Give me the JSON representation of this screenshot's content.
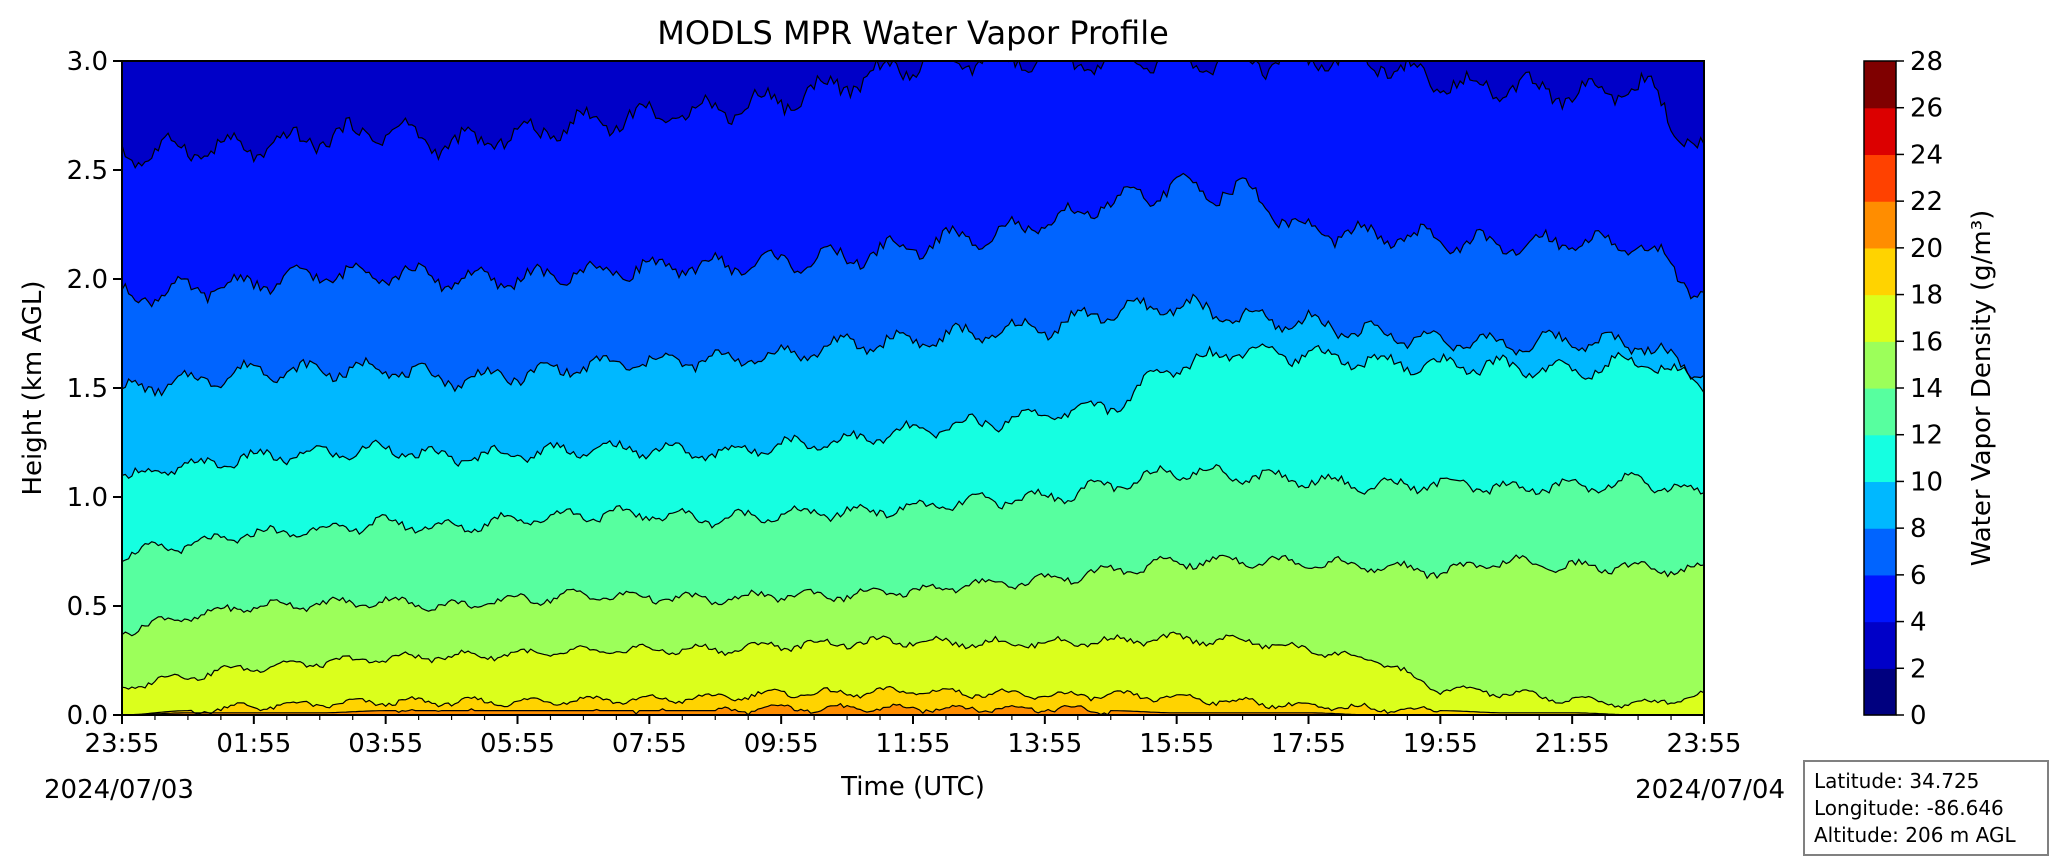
{
  "chart_data": {
    "type": "contour",
    "title": "MODLS MPR Water Vapor Profile",
    "xlabel": "Time (UTC)",
    "ylabel": "Height (km AGL)",
    "x_ticks": [
      "23:55",
      "01:55",
      "03:55",
      "05:55",
      "07:55",
      "09:55",
      "11:55",
      "13:55",
      "15:55",
      "17:55",
      "19:55",
      "21:55",
      "23:55"
    ],
    "x_start_date": "2024/07/03",
    "x_end_date": "2024/07/04",
    "y_ticks": [
      "0.0",
      "0.5",
      "1.0",
      "1.5",
      "2.0",
      "2.5",
      "3.0"
    ],
    "ylim": [
      0,
      3.0
    ],
    "colorbar": {
      "label": "Water Vapor Density (g/m³)",
      "levels": [
        0,
        2,
        4,
        6,
        8,
        10,
        12,
        14,
        16,
        18,
        20,
        22,
        24,
        26,
        28
      ],
      "colors": [
        "#00007f",
        "#0000c8",
        "#0014ff",
        "#0064ff",
        "#00b8ff",
        "#15ffe1",
        "#57ff9f",
        "#9cff5a",
        "#dbff1c",
        "#ffd300",
        "#ff8d00",
        "#ff4100",
        "#dc0000",
        "#7f0000"
      ]
    },
    "contours": [
      {
        "level": 20,
        "height_km": [
          0.0,
          0.01,
          0.01,
          0.01,
          0.02,
          0.02,
          0.02,
          0.02,
          0.02,
          0.02,
          0.03,
          0.03,
          0.03,
          0.03,
          0.03,
          0.02,
          0.01,
          0.01,
          0.01,
          0.0,
          0.0,
          0.0,
          0.0,
          0.0,
          0.0
        ]
      },
      {
        "level": 18,
        "height_km": [
          0.0,
          0.02,
          0.04,
          0.05,
          0.06,
          0.06,
          0.06,
          0.07,
          0.07,
          0.08,
          0.1,
          0.1,
          0.11,
          0.1,
          0.09,
          0.09,
          0.08,
          0.06,
          0.04,
          0.03,
          0.02,
          0.01,
          0.01,
          0.0,
          0.0
        ]
      },
      {
        "level": 16,
        "height_km": [
          0.13,
          0.18,
          0.22,
          0.24,
          0.26,
          0.27,
          0.28,
          0.29,
          0.3,
          0.3,
          0.32,
          0.33,
          0.34,
          0.33,
          0.33,
          0.34,
          0.35,
          0.34,
          0.3,
          0.25,
          0.12,
          0.1,
          0.07,
          0.05,
          0.09
        ]
      },
      {
        "level": 14,
        "height_km": [
          0.39,
          0.45,
          0.5,
          0.51,
          0.52,
          0.5,
          0.53,
          0.55,
          0.54,
          0.53,
          0.55,
          0.55,
          0.57,
          0.6,
          0.62,
          0.66,
          0.7,
          0.71,
          0.7,
          0.68,
          0.66,
          0.7,
          0.68,
          0.68,
          0.66
        ]
      },
      {
        "level": 12,
        "height_km": [
          0.74,
          0.78,
          0.83,
          0.85,
          0.88,
          0.86,
          0.9,
          0.92,
          0.92,
          0.9,
          0.92,
          0.93,
          0.95,
          0.98,
          1.0,
          1.05,
          1.12,
          1.1,
          1.08,
          1.05,
          1.06,
          1.04,
          1.05,
          1.07,
          1.02
        ]
      },
      {
        "level": 10,
        "height_km": [
          1.09,
          1.14,
          1.18,
          1.2,
          1.22,
          1.18,
          1.2,
          1.22,
          1.22,
          1.2,
          1.24,
          1.26,
          1.3,
          1.34,
          1.38,
          1.42,
          1.6,
          1.68,
          1.65,
          1.62,
          1.6,
          1.6,
          1.58,
          1.62,
          1.53
        ]
      },
      {
        "level": 8,
        "height_km": [
          1.49,
          1.53,
          1.58,
          1.58,
          1.59,
          1.54,
          1.56,
          1.6,
          1.62,
          1.63,
          1.65,
          1.7,
          1.72,
          1.75,
          1.78,
          1.85,
          1.88,
          1.82,
          1.8,
          1.75,
          1.72,
          1.7,
          1.72,
          1.7,
          1.57
        ]
      },
      {
        "level": 6,
        "height_km": [
          1.92,
          1.95,
          1.98,
          2.02,
          2.03,
          2.0,
          2.0,
          2.03,
          2.05,
          2.06,
          2.08,
          2.1,
          2.15,
          2.2,
          2.25,
          2.35,
          2.42,
          2.4,
          2.22,
          2.2,
          2.18,
          2.15,
          2.18,
          2.15,
          1.95
        ]
      },
      {
        "level": 4,
        "height_km": [
          2.57,
          2.6,
          2.6,
          2.65,
          2.68,
          2.62,
          2.66,
          2.72,
          2.75,
          2.78,
          2.82,
          2.9,
          2.98,
          3.0,
          3.0,
          3.0,
          3.0,
          3.0,
          3.0,
          3.0,
          2.9,
          2.88,
          2.85,
          2.88,
          2.6
        ]
      }
    ]
  },
  "info_box": {
    "latitude": "Latitude: 34.725",
    "longitude": "Longitude: -86.646",
    "altitude": "Altitude: 206 m AGL"
  }
}
